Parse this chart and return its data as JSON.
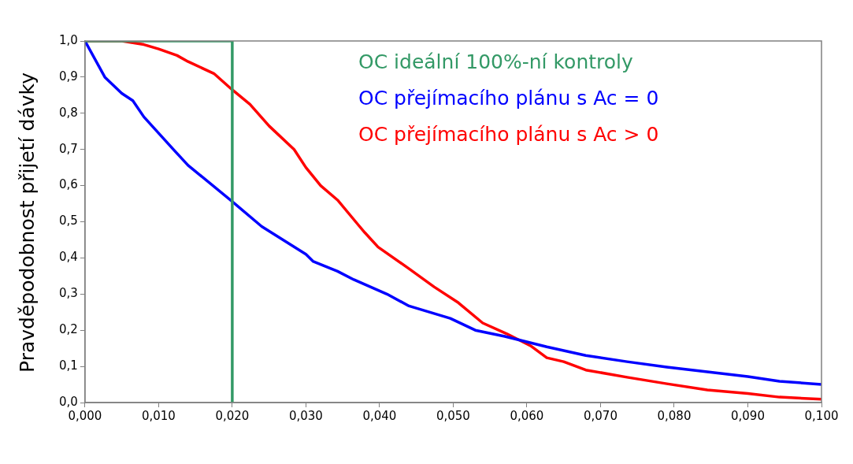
{
  "chart_data": {
    "type": "line",
    "ylabel": "Pravděpodobnost přijetí dávky",
    "legend": "top right",
    "marker": "none",
    "line_style": "solid",
    "grid": false,
    "xlim": [
      0,
      0.1
    ],
    "xticks": [
      {
        "value": 0,
        "label": "0,000"
      },
      {
        "value": 0.01,
        "label": "0,010"
      },
      {
        "value": 0.02,
        "label": "0,020"
      },
      {
        "value": 0.03,
        "label": "0,030"
      },
      {
        "value": 0.04,
        "label": "0,040"
      },
      {
        "value": 0.05,
        "label": "0,050"
      },
      {
        "value": 0.06,
        "label": "0,060"
      },
      {
        "value": 0.07,
        "label": "0,070"
      },
      {
        "value": 0.08,
        "label": "0,080"
      },
      {
        "value": 0.09,
        "label": "0,090"
      },
      {
        "value": 0.1,
        "label": "0,100"
      }
    ],
    "ylim": [
      0,
      1
    ],
    "yticks": [
      {
        "value": 0,
        "label": "0,0"
      },
      {
        "value": 0.1,
        "label": "0,1"
      },
      {
        "value": 0.2,
        "label": "0,2"
      },
      {
        "value": 0.3,
        "label": "0,3"
      },
      {
        "value": 0.4,
        "label": "0,4"
      },
      {
        "value": 0.5,
        "label": "0,5"
      },
      {
        "value": 0.6,
        "label": "0,6"
      },
      {
        "value": 0.7,
        "label": "0,7"
      },
      {
        "value": 0.8,
        "label": "0,8"
      },
      {
        "value": 0.9,
        "label": "0,9"
      },
      {
        "value": 1,
        "label": "1,0"
      }
    ],
    "series": [
      {
        "name": "OC ideální 100%-ní kontroly",
        "color": "#339966",
        "x": [
          0,
          0.02,
          0.02
        ],
        "values": [
          1,
          1,
          0
        ]
      },
      {
        "name": "OC přejímacího plánu s Ac = 0",
        "color": "#0000ff",
        "x": [
          0,
          0.0027,
          0.005,
          0.0065,
          0.008,
          0.012,
          0.014,
          0.02,
          0.024,
          0.03,
          0.031,
          0.0343,
          0.0365,
          0.041,
          0.044,
          0.0496,
          0.053,
          0.057,
          0.0627,
          0.068,
          0.0736,
          0.079,
          0.0845,
          0.09,
          0.0943,
          0.1
        ],
        "values": [
          1,
          0.9,
          0.855,
          0.835,
          0.79,
          0.7,
          0.656,
          0.556,
          0.487,
          0.41,
          0.39,
          0.363,
          0.34,
          0.3,
          0.267,
          0.233,
          0.2,
          0.183,
          0.154,
          0.13,
          0.113,
          0.098,
          0.085,
          0.072,
          0.059,
          0.05
        ]
      },
      {
        "name": "OC přejímacího plánu s Ac > 0",
        "color": "#ff0000",
        "x": [
          0,
          0.005,
          0.008,
          0.01,
          0.0125,
          0.014,
          0.0175,
          0.02,
          0.0224,
          0.025,
          0.0284,
          0.03,
          0.032,
          0.0343,
          0.037,
          0.038,
          0.0398,
          0.044,
          0.0474,
          0.0507,
          0.054,
          0.0573,
          0.0605,
          0.0627,
          0.065,
          0.068,
          0.0736,
          0.079,
          0.0845,
          0.09,
          0.0943,
          0.1
        ],
        "values": [
          1,
          1,
          0.99,
          0.978,
          0.96,
          0.943,
          0.91,
          0.865,
          0.825,
          0.765,
          0.7,
          0.65,
          0.6,
          0.56,
          0.494,
          0.47,
          0.43,
          0.37,
          0.32,
          0.276,
          0.22,
          0.19,
          0.157,
          0.124,
          0.113,
          0.09,
          0.07,
          0.052,
          0.035,
          0.025,
          0.015,
          0.009
        ]
      }
    ]
  }
}
